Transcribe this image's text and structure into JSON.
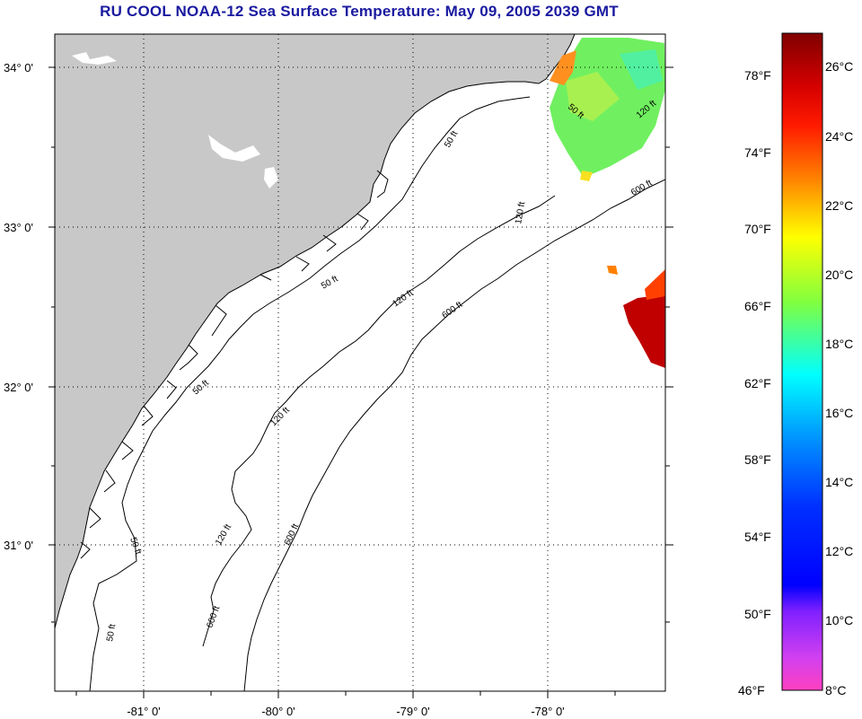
{
  "title": "RU COOL  NOAA-12  Sea Surface Temperature:  May 09, 2005 2039 GMT",
  "map": {
    "lat_ticks": [
      "34° 0'",
      "33° 0'",
      "32° 0'",
      "31° 0'"
    ],
    "lon_ticks": [
      "-81° 0'",
      "-80° 0'",
      "-79° 0'",
      "-78° 0'"
    ],
    "contour_labels": [
      "50 ft",
      "50 ft",
      "50 ft",
      "50 ft",
      "50 ft",
      "50 ft",
      "120 ft",
      "120 ft",
      "120 ft",
      "120 ft",
      "120 ft",
      "600 ft",
      "600 ft",
      "600 ft",
      "600 ft"
    ],
    "colors": {
      "land": "#c8c8c8",
      "ocean": "#ffffff",
      "grid": "#000000"
    }
  },
  "colorbar": {
    "fahrenheit_labels": [
      "78°F",
      "74°F",
      "70°F",
      "66°F",
      "62°F",
      "58°F",
      "54°F",
      "50°F",
      "46°F"
    ],
    "celsius_labels": [
      "26°C",
      "24°C",
      "22°C",
      "20°C",
      "18°C",
      "16°C",
      "14°C",
      "12°C",
      "10°C",
      "8°C"
    ],
    "range_c": [
      8,
      27.2
    ]
  }
}
